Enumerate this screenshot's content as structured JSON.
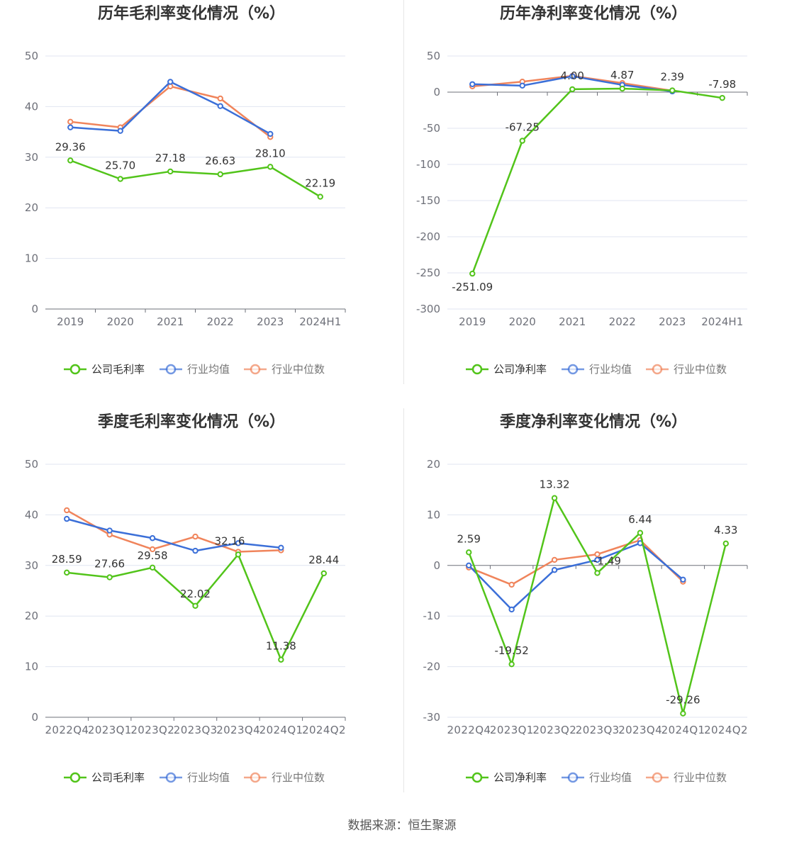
{
  "source_text": "数据来源：恒生聚源",
  "colors": {
    "company": "#52c41a",
    "avg": "#3b6fd8",
    "median": "#f0845b"
  },
  "chart_data": [
    {
      "type": "line",
      "title": "历年毛利率变化情况（%）",
      "categories": [
        "2019",
        "2020",
        "2021",
        "2022",
        "2023",
        "2024H1"
      ],
      "ylim": [
        0,
        50
      ],
      "yticks": [
        "0",
        "10",
        "20",
        "30",
        "40",
        "50"
      ],
      "legend": [
        "公司毛利率",
        "行业均值",
        "行业中位数"
      ],
      "series": [
        {
          "name": "公司毛利率",
          "values": [
            29.36,
            25.7,
            27.18,
            26.63,
            28.1,
            22.19
          ],
          "labels": [
            "29.36",
            "25.70",
            "27.18",
            "26.63",
            "28.10",
            "22.19"
          ]
        },
        {
          "name": "行业均值",
          "values": [
            35.9,
            35.2,
            44.9,
            40.1,
            34.6,
            null
          ]
        },
        {
          "name": "行业中位数",
          "values": [
            37.0,
            35.9,
            44.0,
            41.6,
            34.0,
            null
          ]
        }
      ]
    },
    {
      "type": "line",
      "title": "历年净利率变化情况（%）",
      "categories": [
        "2019",
        "2020",
        "2021",
        "2022",
        "2023",
        "2024H1"
      ],
      "ylim": [
        -300,
        50
      ],
      "yticks": [
        "-300",
        "-250",
        "-200",
        "-150",
        "-100",
        "-50",
        "0",
        "50"
      ],
      "legend": [
        "公司净利率",
        "行业均值",
        "行业中位数"
      ],
      "series": [
        {
          "name": "公司净利率",
          "values": [
            -251.09,
            -67.25,
            4.0,
            4.87,
            2.39,
            -7.98
          ],
          "labels": [
            "-251.09",
            "-67.25",
            "4.00",
            "4.87",
            "2.39",
            "-7.98"
          ]
        },
        {
          "name": "行业均值",
          "values": [
            11.0,
            9.0,
            22.0,
            10.0,
            1.0,
            null
          ]
        },
        {
          "name": "行业中位数",
          "values": [
            8.0,
            14.5,
            22.5,
            12.5,
            2.0,
            null
          ]
        }
      ]
    },
    {
      "type": "line",
      "title": "季度毛利率变化情况（%）",
      "categories": [
        "2022Q4",
        "2023Q1",
        "2023Q2",
        "2023Q3",
        "2023Q4",
        "2024Q1",
        "2024Q2"
      ],
      "ylim": [
        0,
        50
      ],
      "yticks": [
        "0",
        "10",
        "20",
        "30",
        "40",
        "50"
      ],
      "legend": [
        "公司毛利率",
        "行业均值",
        "行业中位数"
      ],
      "series": [
        {
          "name": "公司毛利率",
          "values": [
            28.59,
            27.66,
            29.58,
            22.02,
            32.16,
            11.38,
            28.44
          ],
          "labels": [
            "28.59",
            "27.66",
            "29.58",
            "22.02",
            "32.16",
            "11.38",
            "28.44"
          ]
        },
        {
          "name": "行业均值",
          "values": [
            39.2,
            36.9,
            35.4,
            32.9,
            34.4,
            33.5,
            null
          ]
        },
        {
          "name": "行业中位数",
          "values": [
            40.9,
            36.1,
            33.2,
            35.7,
            32.7,
            33.0,
            null
          ]
        }
      ]
    },
    {
      "type": "line",
      "title": "季度净利率变化情况（%）",
      "categories": [
        "2022Q4",
        "2023Q1",
        "2023Q2",
        "2023Q3",
        "2023Q4",
        "2024Q1",
        "2024Q2"
      ],
      "ylim": [
        -30,
        20
      ],
      "yticks": [
        "-30",
        "-20",
        "-10",
        "0",
        "10",
        "20"
      ],
      "legend": [
        "公司净利率",
        "行业均值",
        "行业中位数"
      ],
      "series": [
        {
          "name": "公司净利率",
          "values": [
            2.59,
            -19.52,
            13.32,
            -1.49,
            6.44,
            -29.26,
            4.33
          ],
          "labels": [
            "2.59",
            "-19.52",
            "13.32",
            "-1.49",
            "6.44",
            "-29.26",
            "4.33"
          ]
        },
        {
          "name": "行业均值",
          "values": [
            0.0,
            -8.7,
            -0.9,
            1.1,
            4.4,
            -2.8,
            null
          ]
        },
        {
          "name": "行业中位数",
          "values": [
            -0.4,
            -3.8,
            1.1,
            2.2,
            5.0,
            -3.2,
            null
          ]
        }
      ]
    }
  ]
}
